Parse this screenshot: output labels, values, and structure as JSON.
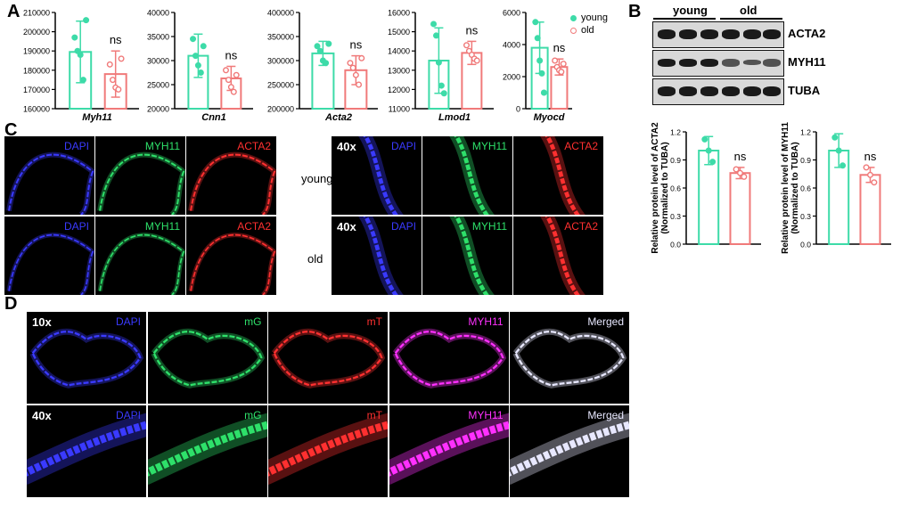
{
  "panels": {
    "A": "A",
    "B": "B",
    "C": "C",
    "D": "D"
  },
  "colors": {
    "young": "#3ddba8",
    "old": "#f07a7a",
    "dapi": "#3a3aff",
    "green": "#2ee06a",
    "red": "#ff3030",
    "magenta": "#ff30ff"
  },
  "legend": {
    "young": "young",
    "old": "old"
  },
  "significance": "ns",
  "chart_data": [
    {
      "type": "bar",
      "gene": "Myh11",
      "categories": [
        "young",
        "old"
      ],
      "values": [
        189500,
        178000
      ],
      "errors": [
        16000,
        12000
      ],
      "ylim": [
        160000,
        210000
      ],
      "yticks": [
        "160000",
        "170000",
        "180000",
        "190000",
        "200000",
        "210000"
      ],
      "points": [
        [
          197000,
          190000,
          188000,
          175000,
          206000
        ],
        [
          183000,
          175000,
          171000,
          170000,
          186000
        ]
      ]
    },
    {
      "type": "bar",
      "gene": "Cnn1",
      "categories": [
        "young",
        "old"
      ],
      "values": [
        31000,
        26300
      ],
      "errors": [
        4500,
        2500
      ],
      "ylim": [
        20000,
        40000
      ],
      "yticks": [
        "20000",
        "25000",
        "30000",
        "35000",
        "40000"
      ],
      "points": [
        [
          34500,
          31000,
          29000,
          27500,
          33000
        ],
        [
          28000,
          26000,
          24500,
          23500,
          27000
        ]
      ]
    },
    {
      "type": "bar",
      "gene": "Acta2",
      "categories": [
        "young",
        "old"
      ],
      "values": [
        315000,
        280000
      ],
      "errors": [
        25000,
        30000
      ],
      "ylim": [
        200000,
        400000
      ],
      "yticks": [
        "200000",
        "250000",
        "300000",
        "350000",
        "400000"
      ],
      "points": [
        [
          330000,
          320000,
          300000,
          295000,
          335000
        ],
        [
          295000,
          285000,
          270000,
          250000,
          305000
        ]
      ]
    },
    {
      "type": "bar",
      "gene": "Lmod1",
      "categories": [
        "young",
        "old"
      ],
      "values": [
        13500,
        13900
      ],
      "errors": [
        1700,
        600
      ],
      "ylim": [
        11000,
        16000
      ],
      "yticks": [
        "11000",
        "12000",
        "13000",
        "14000",
        "15000",
        "16000"
      ],
      "points": [
        [
          15400,
          14800,
          13400,
          12200,
          11800
        ],
        [
          14300,
          14000,
          13800,
          13600,
          13500
        ]
      ]
    },
    {
      "type": "bar",
      "gene": "Myocd",
      "categories": [
        "young",
        "old"
      ],
      "values": [
        3800,
        2600
      ],
      "errors": [
        1600,
        500
      ],
      "ylim": [
        0,
        6000
      ],
      "yticks": [
        "0",
        "2000",
        "4000",
        "6000"
      ],
      "points": [
        [
          5400,
          4400,
          3000,
          2200,
          1000
        ],
        [
          3000,
          2600,
          2400,
          2300,
          2800
        ]
      ]
    },
    {
      "type": "bar",
      "protein": "ACTA2",
      "categories": [
        "young",
        "old"
      ],
      "values": [
        1.0,
        0.76
      ],
      "errors": [
        0.15,
        0.06
      ],
      "ylim": [
        0,
        1.2
      ],
      "yticks": [
        "0.0",
        "0.3",
        "0.6",
        "0.9",
        "1.2"
      ],
      "ylabel": "Relative protein level of ACTA2",
      "ylabel2": "(Normalized to TUBA)",
      "points": [
        [
          1.12,
          1.0,
          0.88
        ],
        [
          0.8,
          0.76,
          0.72
        ]
      ]
    },
    {
      "type": "bar",
      "protein": "MYH11",
      "categories": [
        "young",
        "old"
      ],
      "values": [
        1.0,
        0.74
      ],
      "errors": [
        0.18,
        0.08
      ],
      "ylim": [
        0,
        1.2
      ],
      "yticks": [
        "0.0",
        "0.3",
        "0.6",
        "0.9",
        "1.2"
      ],
      "ylabel": "Relative protein level of MYH11",
      "ylabel2": "(Normalized to TUBA)",
      "points": [
        [
          1.14,
          1.0,
          0.84
        ],
        [
          0.82,
          0.74,
          0.66
        ]
      ]
    }
  ],
  "western": {
    "young": "young",
    "old": "old",
    "labels": [
      "ACTA2",
      "MYH11",
      "TUBA"
    ]
  },
  "panel_c": {
    "channels": [
      "DAPI",
      "MYH11",
      "ACTA2"
    ],
    "magnification": "40x",
    "rows": [
      "young",
      "old"
    ]
  },
  "panel_d": {
    "channels": [
      "DAPI",
      "mG",
      "mT",
      "MYH11",
      "Merged"
    ],
    "mag_top": "10x",
    "mag_bottom": "40x"
  }
}
